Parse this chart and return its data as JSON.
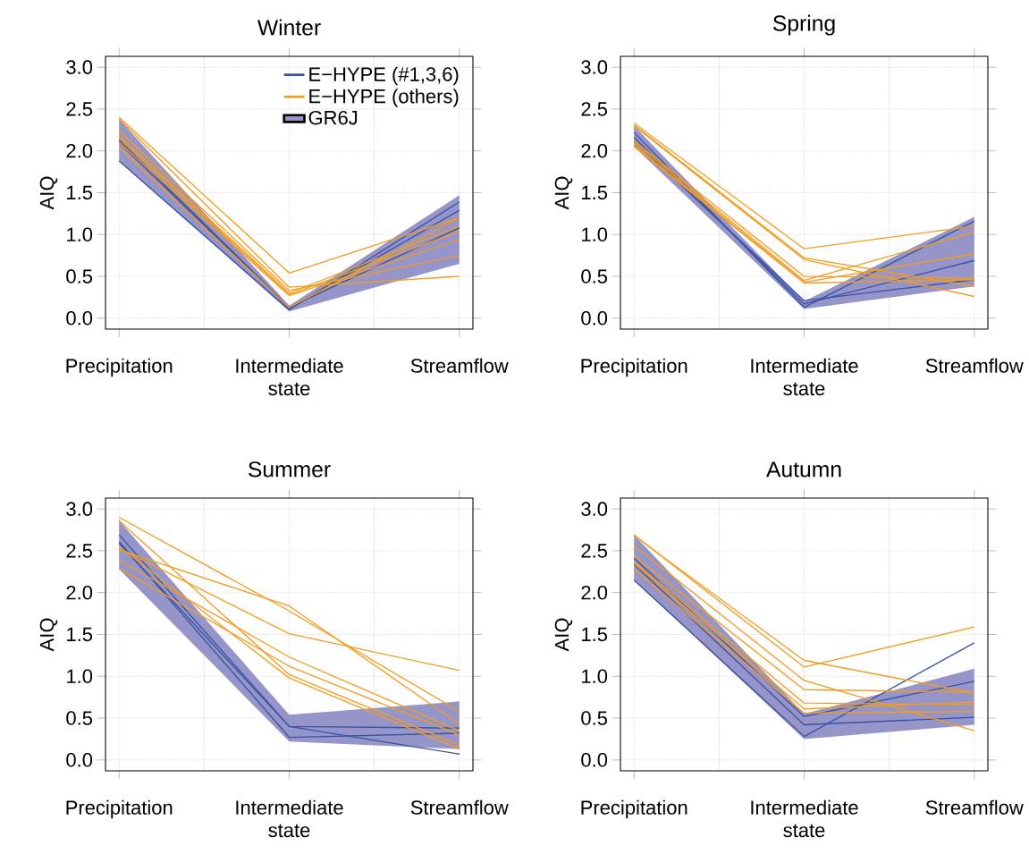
{
  "chart_data": [
    {
      "type": "line",
      "title": "Winter",
      "ylabel": "AIQ",
      "categories": [
        "Precipitation",
        "Intermediate state",
        "Streamflow"
      ],
      "ylim": [
        -0.13,
        3.13
      ],
      "yticks": [
        {
          "value": 0,
          "label": "0.0"
        },
        {
          "value": 0.5,
          "label": "0.5"
        },
        {
          "value": 1,
          "label": "1.0"
        },
        {
          "value": 1.5,
          "label": "1.5"
        },
        {
          "value": 2,
          "label": "2.0"
        },
        {
          "value": 2.5,
          "label": "2.5"
        },
        {
          "value": 3,
          "label": "3.0"
        }
      ],
      "grid": true,
      "legend": "top right",
      "series": [
        {
          "name": "E−HYPE (#1,3,6)",
          "color": "#3953a4",
          "values": [
            1.88,
            0.1,
            1.39
          ]
        },
        {
          "color": "#3953a4",
          "values": [
            2.1,
            0.12,
            1.29
          ]
        },
        {
          "color": "#3953a4",
          "values": [
            2.13,
            0.13,
            1.08
          ]
        },
        {
          "name": "E−HYPE (others)",
          "color": "#f39c1e",
          "values": [
            2.4,
            0.54,
            1.2
          ]
        },
        {
          "color": "#f39c1e",
          "values": [
            2.38,
            0.37,
            0.5
          ]
        },
        {
          "color": "#f39c1e",
          "values": [
            2.24,
            0.33,
            0.75
          ]
        },
        {
          "color": "#f39c1e",
          "values": [
            2.18,
            0.3,
            1.1
          ]
        },
        {
          "color": "#f39c1e",
          "values": [
            2.15,
            0.28,
            1.04
          ]
        },
        {
          "color": "#f39c1e",
          "values": [
            2.1,
            0.27,
            0.94
          ]
        },
        {
          "color": "#f39c1e",
          "values": [
            2.04,
            0.13,
            1.2
          ]
        },
        {
          "name": "GR6J",
          "color": "#9595c9",
          "values": [
            null,
            null,
            null
          ],
          "lower": [
            1.88,
            0.08,
            0.65
          ],
          "upper": [
            2.38,
            0.15,
            1.47
          ]
        }
      ]
    },
    {
      "type": "line",
      "title": "Spring",
      "ylabel": "AIQ",
      "categories": [
        "Precipitation",
        "Intermediate state",
        "Streamflow"
      ],
      "ylim": [
        -0.13,
        3.13
      ],
      "yticks": [
        {
          "value": 0,
          "label": "0.0"
        },
        {
          "value": 0.5,
          "label": "0.5"
        },
        {
          "value": 1,
          "label": "1.0"
        },
        {
          "value": 1.5,
          "label": "1.5"
        },
        {
          "value": 2,
          "label": "2.0"
        },
        {
          "value": 2.5,
          "label": "2.5"
        },
        {
          "value": 3,
          "label": "3.0"
        }
      ],
      "grid": true,
      "series": [
        {
          "color": "#3953a4",
          "values": [
            2.22,
            0.13,
            1.16
          ]
        },
        {
          "color": "#3953a4",
          "values": [
            2.16,
            0.17,
            0.69
          ]
        },
        {
          "color": "#3953a4",
          "values": [
            2.12,
            0.21,
            0.46
          ]
        },
        {
          "color": "#f39c1e",
          "values": [
            2.33,
            0.83,
            1.1
          ]
        },
        {
          "color": "#f39c1e",
          "values": [
            2.31,
            0.72,
            0.38
          ]
        },
        {
          "color": "#f39c1e",
          "values": [
            2.3,
            0.7,
            0.26
          ]
        },
        {
          "color": "#f39c1e",
          "values": [
            2.12,
            0.5,
            0.48
          ]
        },
        {
          "color": "#f39c1e",
          "values": [
            2.1,
            0.45,
            1.03
          ]
        },
        {
          "color": "#f39c1e",
          "values": [
            2.07,
            0.43,
            0.77
          ]
        },
        {
          "color": "#f39c1e",
          "values": [
            2.05,
            0.42,
            0.46
          ]
        },
        {
          "color": "#9595c9",
          "values": [
            null,
            null,
            null
          ],
          "lower": [
            2.05,
            0.11,
            0.38
          ],
          "upper": [
            2.3,
            0.2,
            1.21
          ]
        }
      ]
    },
    {
      "type": "line",
      "title": "Summer",
      "ylabel": "AIQ",
      "categories": [
        "Precipitation",
        "Intermediate state",
        "Streamflow"
      ],
      "ylim": [
        -0.13,
        3.13
      ],
      "yticks": [
        {
          "value": 0,
          "label": "0.0"
        },
        {
          "value": 0.5,
          "label": "0.5"
        },
        {
          "value": 1,
          "label": "1.0"
        },
        {
          "value": 1.5,
          "label": "1.5"
        },
        {
          "value": 2,
          "label": "2.0"
        },
        {
          "value": 2.5,
          "label": "2.5"
        },
        {
          "value": 3,
          "label": "3.0"
        }
      ],
      "grid": true,
      "series": [
        {
          "color": "#3953a4",
          "values": [
            2.69,
            0.4,
            0.07
          ]
        },
        {
          "color": "#3953a4",
          "values": [
            2.61,
            0.27,
            0.32
          ]
        },
        {
          "color": "#3953a4",
          "values": [
            2.59,
            0.4,
            0.38
          ]
        },
        {
          "color": "#f39c1e",
          "values": [
            2.9,
            1.78,
            0.58
          ]
        },
        {
          "color": "#f39c1e",
          "values": [
            2.86,
            1.02,
            0.18
          ]
        },
        {
          "color": "#f39c1e",
          "values": [
            2.53,
            1.51,
            1.07
          ]
        },
        {
          "color": "#f39c1e",
          "values": [
            2.51,
            1.84,
            0.43
          ]
        },
        {
          "color": "#f39c1e",
          "values": [
            2.39,
            1.23,
            0.35
          ]
        },
        {
          "color": "#f39c1e",
          "values": [
            2.29,
            1.12,
            0.3
          ]
        },
        {
          "color": "#f39c1e",
          "values": [
            2.55,
            0.98,
            0.13
          ]
        },
        {
          "color": "#9595c9",
          "values": [
            null,
            null,
            null
          ],
          "lower": [
            2.28,
            0.22,
            0.13
          ],
          "upper": [
            2.86,
            0.54,
            0.7
          ]
        }
      ]
    },
    {
      "type": "line",
      "title": "Autumn",
      "ylabel": "AIQ",
      "categories": [
        "Precipitation",
        "Intermediate state",
        "Streamflow"
      ],
      "ylim": [
        -0.13,
        3.13
      ],
      "yticks": [
        {
          "value": 0,
          "label": "0.0"
        },
        {
          "value": 0.5,
          "label": "0.5"
        },
        {
          "value": 1,
          "label": "1.0"
        },
        {
          "value": 1.5,
          "label": "1.5"
        },
        {
          "value": 2,
          "label": "2.0"
        },
        {
          "value": 2.5,
          "label": "2.5"
        },
        {
          "value": 3,
          "label": "3.0"
        }
      ],
      "grid": true,
      "series": [
        {
          "color": "#3953a4",
          "values": [
            2.15,
            0.28,
            1.4
          ]
        },
        {
          "color": "#3953a4",
          "values": [
            2.41,
            0.52,
            0.94
          ]
        },
        {
          "color": "#3953a4",
          "values": [
            2.34,
            0.42,
            0.51
          ]
        },
        {
          "color": "#f39c1e",
          "values": [
            2.69,
            1.11,
            1.59
          ]
        },
        {
          "color": "#f39c1e",
          "values": [
            2.68,
            1.19,
            0.8
          ]
        },
        {
          "color": "#f39c1e",
          "values": [
            2.56,
            0.95,
            0.35
          ]
        },
        {
          "color": "#f39c1e",
          "values": [
            2.44,
            0.84,
            0.81
          ]
        },
        {
          "color": "#f39c1e",
          "values": [
            2.37,
            0.68,
            0.66
          ]
        },
        {
          "color": "#f39c1e",
          "values": [
            2.35,
            0.61,
            0.69
          ]
        },
        {
          "color": "#f39c1e",
          "values": [
            2.28,
            0.56,
            0.58
          ]
        },
        {
          "color": "#9595c9",
          "values": [
            null,
            null,
            null
          ],
          "lower": [
            2.15,
            0.25,
            0.42
          ],
          "upper": [
            2.69,
            0.55,
            1.09
          ]
        }
      ]
    }
  ]
}
